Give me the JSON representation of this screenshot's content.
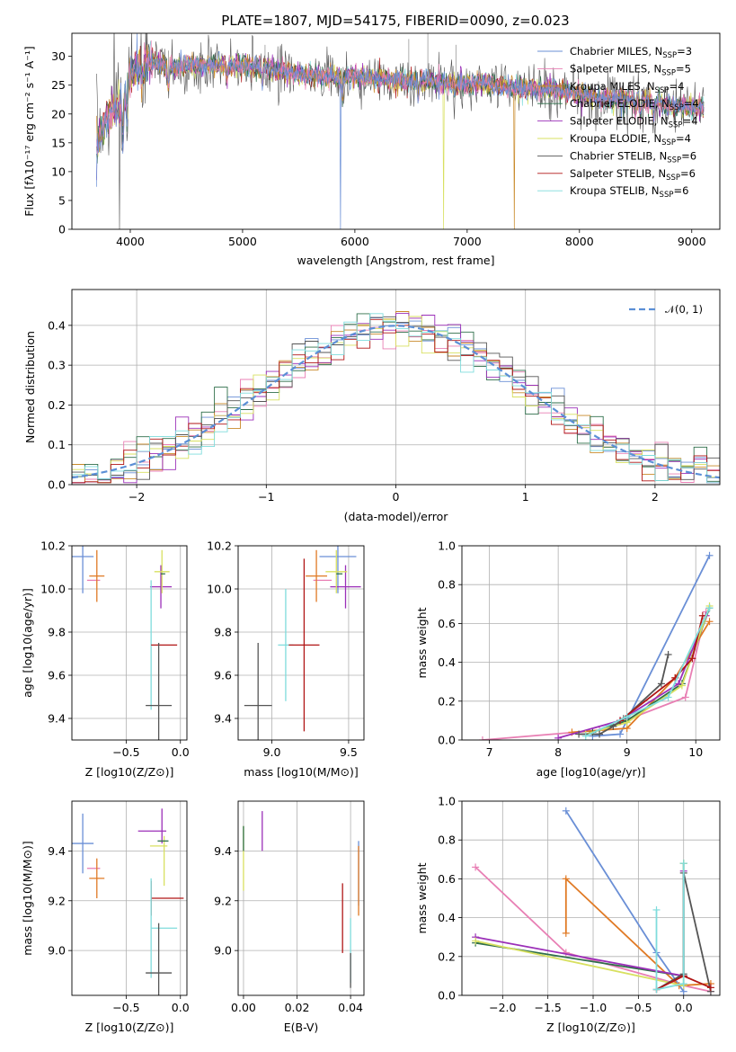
{
  "chart_data": [
    {
      "type": "line",
      "title": "PLATE=1807, MJD=54175, FIBERID=0090, z=0.023",
      "xlabel": "wavelength [Angstrom, rest frame]",
      "ylabel": "Flux [fλ10⁻¹⁷ erg cm⁻² s⁻¹ A⁻¹]",
      "xlim": [
        3480,
        9250
      ],
      "ylim": [
        0,
        34
      ],
      "xticks": [
        4000,
        5000,
        6000,
        7000,
        8000,
        9000
      ],
      "yticks": [
        0,
        5,
        10,
        15,
        20,
        25,
        30
      ],
      "legend_position": "upper right",
      "series": [
        {
          "name": "Chabrier MILES, N_SSP=3",
          "color": "#6a8fd6"
        },
        {
          "name": "Salpeter MILES, N_SSP=5",
          "color": "#e87fb4"
        },
        {
          "name": "Kroupa MILES, N_SSP=4",
          "color": "#c98a2a"
        },
        {
          "name": "Chabrier ELODIE, N_SSP=4",
          "color": "#2f6f4a"
        },
        {
          "name": "Salpeter ELODIE, N_SSP=4",
          "color": "#9b2fb8"
        },
        {
          "name": "Kroupa ELODIE, N_SSP=4",
          "color": "#d8e060"
        },
        {
          "name": "Chabrier STELIB, N_SSP=6",
          "color": "#555555"
        },
        {
          "name": "Salpeter STELIB, N_SSP=6",
          "color": "#b01515"
        },
        {
          "name": "Kroupa STELIB, N_SSP=6",
          "color": "#7fdcdc"
        }
      ],
      "approx_continuum": {
        "x": [
          3700,
          3800,
          3900,
          3950,
          4000,
          4100,
          4200,
          4350,
          4500,
          4700,
          5000,
          5200,
          5500,
          5800,
          6000,
          6300,
          6500,
          6700,
          6900,
          7100,
          7400,
          7700,
          8000,
          8200,
          8500,
          8800,
          9100
        ],
        "y": [
          14,
          20,
          21,
          23,
          27,
          28.5,
          29,
          28,
          28.5,
          28.5,
          28.5,
          28,
          27,
          26.5,
          26.5,
          26,
          25.5,
          26,
          25,
          25.5,
          24.5,
          24.5,
          23.5,
          22.5,
          22.5,
          21.5,
          21
        ]
      }
    },
    {
      "type": "line",
      "xlabel": "(data-model)/error",
      "ylabel": "Normed distribution",
      "xlim": [
        -2.5,
        2.5
      ],
      "ylim": [
        0,
        0.49
      ],
      "xticks": [
        -2,
        -1,
        0,
        1,
        2
      ],
      "yticks": [
        0.0,
        0.1,
        0.2,
        0.3,
        0.4
      ],
      "legend": "𝒩(0, 1)",
      "gaussian": {
        "mean": 0,
        "sigma": 1,
        "color": "#5b8fd6"
      },
      "histogram_bin_width": 0.1
    },
    {
      "type": "scatter",
      "xlabel": "Z [log10(Z/Z⊙)]",
      "ylabel": "age  [log10(age/yr)]",
      "xlim": [
        -1.0,
        0.06
      ],
      "ylim": [
        9.3,
        10.2
      ],
      "xticks": [
        -0.5,
        0.0
      ],
      "yticks": [
        9.4,
        9.6,
        9.8,
        10.0,
        10.2
      ],
      "points": [
        {
          "x": -0.9,
          "y": 10.15,
          "xerr": 0.1,
          "yerr": 0.17,
          "color": "#6a8fd6"
        },
        {
          "x": -0.8,
          "y": 10.04,
          "xerr": 0.06,
          "yerr": 0.0,
          "color": "#e87fb4"
        },
        {
          "x": -0.77,
          "y": 10.06,
          "xerr": 0.07,
          "yerr": 0.12,
          "color": "#e07a25"
        },
        {
          "x": -0.18,
          "y": 10.01,
          "xerr": 0.1,
          "yerr": 0.1,
          "color": "#9b2fb8"
        },
        {
          "x": -0.17,
          "y": 10.08,
          "xerr": 0.07,
          "yerr": 0.1,
          "color": "#d8e060"
        },
        {
          "x": -0.16,
          "y": 10.07,
          "xerr": 0.02,
          "yerr": 0.0,
          "color": "#2f6f4a"
        },
        {
          "x": -0.27,
          "y": 9.74,
          "xerr": 0.0,
          "yerr": 0.3,
          "color": "#7fdcdc"
        },
        {
          "x": -0.15,
          "y": 9.74,
          "xerr": 0.12,
          "yerr": 0.0,
          "color": "#b01515"
        },
        {
          "x": -0.2,
          "y": 9.46,
          "xerr": 0.12,
          "yerr": 0.29,
          "color": "#555555"
        }
      ]
    },
    {
      "type": "scatter",
      "xlabel": "mass [log10(M/M⊙)]",
      "ylabel": "",
      "xlim": [
        8.78,
        9.6
      ],
      "ylim": [
        9.3,
        10.2
      ],
      "xticks": [
        9.0,
        9.5
      ],
      "yticks": [
        9.4,
        9.6,
        9.8,
        10.0,
        10.2
      ],
      "points": [
        {
          "x": 9.43,
          "y": 10.15,
          "xerr": 0.12,
          "yerr": 0.17,
          "color": "#6a8fd6"
        },
        {
          "x": 9.33,
          "y": 10.04,
          "xerr": 0.06,
          "yerr": 0.0,
          "color": "#e87fb4"
        },
        {
          "x": 9.29,
          "y": 10.06,
          "xerr": 0.07,
          "yerr": 0.12,
          "color": "#e07a25"
        },
        {
          "x": 9.48,
          "y": 10.01,
          "xerr": 0.1,
          "yerr": 0.1,
          "color": "#9b2fb8"
        },
        {
          "x": 9.42,
          "y": 10.08,
          "xerr": 0.07,
          "yerr": 0.1,
          "color": "#d8e060"
        },
        {
          "x": 9.44,
          "y": 10.07,
          "xerr": 0.02,
          "yerr": 0.0,
          "color": "#2f6f4a"
        },
        {
          "x": 9.09,
          "y": 9.74,
          "xerr": 0.05,
          "yerr": 0.26,
          "color": "#7fdcdc"
        },
        {
          "x": 9.21,
          "y": 9.74,
          "xerr": 0.1,
          "yerr": 0.4,
          "color": "#b01515"
        },
        {
          "x": 8.91,
          "y": 9.46,
          "xerr": 0.09,
          "yerr": 0.29,
          "color": "#555555"
        }
      ]
    },
    {
      "type": "line",
      "xlabel": "age  [log10(age/yr)]",
      "ylabel": "mass weight",
      "xlim": [
        6.6,
        10.35
      ],
      "ylim": [
        0,
        1.0
      ],
      "xticks": [
        7,
        8,
        9,
        10
      ],
      "yticks": [
        0.0,
        0.2,
        0.4,
        0.6,
        0.8,
        1.0
      ],
      "series": [
        {
          "color": "#6a8fd6",
          "x": [
            8.5,
            8.9,
            10.2
          ],
          "y": [
            0.02,
            0.03,
            0.95
          ]
        },
        {
          "color": "#e87fb4",
          "x": [
            6.9,
            8.6,
            9.85,
            10.15
          ],
          "y": [
            0.0,
            0.05,
            0.22,
            0.66
          ]
        },
        {
          "color": "#e07a25",
          "x": [
            8.2,
            9.0,
            9.7,
            10.2
          ],
          "y": [
            0.04,
            0.06,
            0.32,
            0.61
          ]
        },
        {
          "color": "#2f6f4a",
          "x": [
            8.5,
            9.0,
            9.8,
            10.2
          ],
          "y": [
            0.04,
            0.1,
            0.29,
            0.68
          ]
        },
        {
          "color": "#9b2fb8",
          "x": [
            8.0,
            8.9,
            9.75,
            10.15
          ],
          "y": [
            0.01,
            0.1,
            0.29,
            0.64
          ]
        },
        {
          "color": "#d8e060",
          "x": [
            8.4,
            9.0,
            9.8,
            10.2
          ],
          "y": [
            0.03,
            0.09,
            0.28,
            0.69
          ]
        },
        {
          "color": "#555555",
          "x": [
            8.3,
            8.6,
            8.8,
            8.95,
            9.5,
            9.6
          ],
          "y": [
            0.03,
            0.03,
            0.07,
            0.11,
            0.29,
            0.44
          ]
        },
        {
          "color": "#b01515",
          "x": [
            8.9,
            9.7,
            9.95,
            10.1
          ],
          "y": [
            0.1,
            0.32,
            0.42,
            0.64
          ]
        },
        {
          "color": "#7fdcdc",
          "x": [
            8.4,
            9.0,
            9.6,
            10.2
          ],
          "y": [
            0.02,
            0.12,
            0.22,
            0.68
          ]
        }
      ]
    },
    {
      "type": "scatter",
      "xlabel": "Z [log10(Z/Z⊙)]",
      "ylabel": "mass [log10(M/M⊙)]",
      "xlim": [
        -1.0,
        0.06
      ],
      "ylim": [
        8.82,
        9.6
      ],
      "xticks": [
        -0.5,
        0.0
      ],
      "yticks": [
        9.0,
        9.2,
        9.4
      ],
      "points": [
        {
          "x": -0.9,
          "y": 9.43,
          "xerr": 0.1,
          "yerr": 0.12,
          "color": "#6a8fd6"
        },
        {
          "x": -0.8,
          "y": 9.33,
          "xerr": 0.06,
          "yerr": 0.0,
          "color": "#e87fb4"
        },
        {
          "x": -0.77,
          "y": 9.29,
          "xerr": 0.07,
          "yerr": 0.08,
          "color": "#e07a25"
        },
        {
          "x": -0.26,
          "y": 9.48,
          "xerr": 0.13,
          "yerr": 0.0,
          "color": "#9b2fb8"
        },
        {
          "x": -0.17,
          "y": 9.5,
          "xerr": 0.0,
          "yerr": 0.07,
          "color": "#9b2fb8"
        },
        {
          "x": -0.2,
          "y": 9.42,
          "xerr": 0.08,
          "yerr": 0.0,
          "color": "#d8e060"
        },
        {
          "x": -0.15,
          "y": 9.36,
          "xerr": 0.0,
          "yerr": 0.1,
          "color": "#d8e060"
        },
        {
          "x": -0.16,
          "y": 9.44,
          "xerr": 0.05,
          "yerr": 0.0,
          "color": "#2f6f4a"
        },
        {
          "x": -0.27,
          "y": 9.21,
          "xerr": 0.0,
          "yerr": 0.07,
          "color": "#b01515"
        },
        {
          "x": -0.12,
          "y": 9.21,
          "xerr": 0.15,
          "yerr": 0.0,
          "color": "#b01515"
        },
        {
          "x": -0.27,
          "y": 9.09,
          "xerr": 0.0,
          "yerr": 0.2,
          "color": "#7fdcdc"
        },
        {
          "x": -0.15,
          "y": 9.09,
          "xerr": 0.12,
          "yerr": 0.0,
          "color": "#7fdcdc"
        },
        {
          "x": -0.2,
          "y": 8.91,
          "xerr": 0.12,
          "yerr": 0.2,
          "color": "#555555"
        }
      ]
    },
    {
      "type": "scatter",
      "xlabel": "E(B-V)",
      "ylabel": "",
      "xlim": [
        -0.002,
        0.045
      ],
      "ylim": [
        8.82,
        9.6
      ],
      "xticks": [
        0.0,
        0.02,
        0.04
      ],
      "yticks": [
        9.0,
        9.2,
        9.4
      ],
      "points": [
        {
          "x": 0.0,
          "y": 9.37,
          "yerr": 0.13,
          "color": "#d8e060"
        },
        {
          "x": 0.0,
          "y": 9.45,
          "yerr": 0.05,
          "color": "#2f6f4a"
        },
        {
          "x": 0.007,
          "y": 9.48,
          "yerr": 0.08,
          "color": "#9b2fb8"
        },
        {
          "x": 0.037,
          "y": 9.13,
          "yerr": 0.14,
          "color": "#b01515"
        },
        {
          "x": 0.04,
          "y": 9.0,
          "yerr": 0.13,
          "color": "#7fdcdc"
        },
        {
          "x": 0.04,
          "y": 8.92,
          "yerr": 0.07,
          "color": "#555555"
        },
        {
          "x": 0.043,
          "y": 9.31,
          "yerr": 0.13,
          "color": "#6a8fd6"
        },
        {
          "x": 0.043,
          "y": 9.28,
          "yerr": 0.14,
          "color": "#e07a25"
        }
      ]
    },
    {
      "type": "line",
      "xlabel": "Z [log10(Z/Z⊙)]",
      "ylabel": "mass weight",
      "xlim": [
        -2.45,
        0.4
      ],
      "ylim": [
        0,
        1.0
      ],
      "xticks": [
        -2.0,
        -1.5,
        -1.0,
        -0.5,
        0.0
      ],
      "yticks": [
        0.0,
        0.2,
        0.4,
        0.6,
        0.8,
        1.0
      ],
      "series": [
        {
          "color": "#6a8fd6",
          "x": [
            -1.3,
            -0.3,
            0.0
          ],
          "y": [
            0.95,
            0.22,
            0.02
          ]
        },
        {
          "color": "#e87fb4",
          "x": [
            -2.3,
            -1.3,
            0.0,
            0.3
          ],
          "y": [
            0.66,
            0.22,
            0.05,
            0.02
          ]
        },
        {
          "color": "#e07a25",
          "x": [
            -1.3,
            -1.3,
            -0.05,
            0.3
          ],
          "y": [
            0.32,
            0.6,
            0.05,
            0.06
          ]
        },
        {
          "color": "#2f6f4a",
          "x": [
            -2.3,
            0.0,
            0.0
          ],
          "y": [
            0.27,
            0.1,
            0.68
          ]
        },
        {
          "color": "#9b2fb8",
          "x": [
            -2.3,
            0.0,
            0.0
          ],
          "y": [
            0.3,
            0.1,
            0.64
          ]
        },
        {
          "color": "#d8e060",
          "x": [
            -2.3,
            0.0,
            0.0
          ],
          "y": [
            0.28,
            0.05,
            0.68
          ]
        },
        {
          "color": "#555555",
          "x": [
            -0.3,
            0.0,
            0.0,
            0.3
          ],
          "y": [
            0.03,
            0.11,
            0.63,
            0.02
          ]
        },
        {
          "color": "#b01515",
          "x": [
            -0.3,
            0.0,
            0.3
          ],
          "y": [
            0.03,
            0.1,
            0.04
          ]
        },
        {
          "color": "#7fdcdc",
          "x": [
            -0.3,
            -0.3,
            0.0,
            0.0
          ],
          "y": [
            0.44,
            0.03,
            0.06,
            0.68
          ]
        }
      ]
    }
  ]
}
